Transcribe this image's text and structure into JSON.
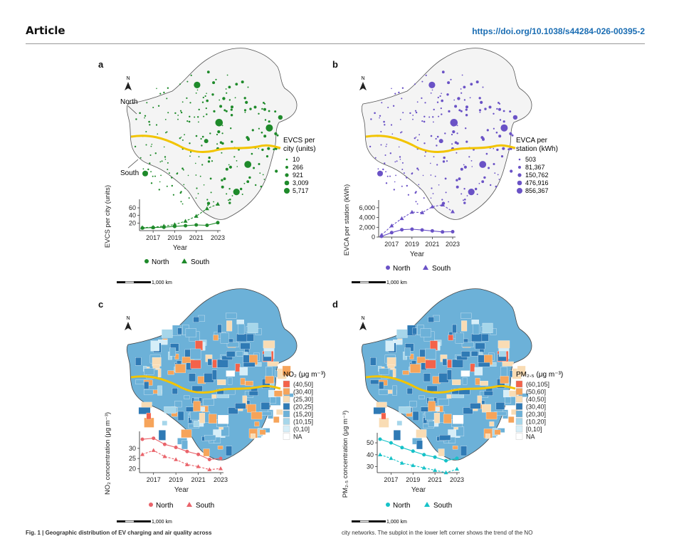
{
  "header": {
    "section": "Article",
    "doi": "https://doi.org/10.1038/s44284-026-00395-2"
  },
  "common": {
    "north_arrow": "N",
    "scale_bar": "1,000 km",
    "xaxis_label": "Year",
    "region_north": "North",
    "region_south": "South",
    "legend_north": "North",
    "legend_south": "South"
  },
  "colors": {
    "green": "#1e8a2a",
    "purple": "#6a52c6",
    "red": "#e9636a",
    "teal": "#16c2c8",
    "divider": "#f2c400"
  },
  "panels": {
    "a": {
      "letter": "a",
      "legend_title_1": "EVCS per",
      "legend_title_2": "city (units)",
      "legend_items": [
        "10",
        "266",
        "921",
        "3,009",
        "5,717"
      ]
    },
    "b": {
      "letter": "b",
      "legend_title_1": "EVCA per",
      "legend_title_2": "station (kWh)",
      "legend_items": [
        "503",
        "81,367",
        "150,762",
        "476,916",
        "856,367"
      ]
    },
    "c": {
      "letter": "c",
      "legend_title": "NO₂ (μg m⁻³)",
      "legend_items": [
        "(40,50]",
        "(30,40]",
        "(25,30]",
        "(20,25]",
        "(15,20]",
        "(10,15]",
        "(0,10]",
        "NA"
      ],
      "legend_colors": [
        "#f4624a",
        "#f6a45a",
        "#f9dcb4",
        "#2f7ab5",
        "#6cb1d8",
        "#a6d6ea",
        "#d6eef8",
        "#ffffff"
      ]
    },
    "d": {
      "letter": "d",
      "legend_title": "PM₂.₅ (μg m⁻³)",
      "legend_items": [
        "(60,105]",
        "(50,60]",
        "(40,50]",
        "(30,40]",
        "(20,30]",
        "(10,20]",
        "[0,10]",
        "NA"
      ],
      "legend_colors": [
        "#f4624a",
        "#f6a45a",
        "#f9dcb4",
        "#2f7ab5",
        "#6cb1d8",
        "#a6d6ea",
        "#d6eef8",
        "#ffffff"
      ]
    }
  },
  "chart_data": [
    {
      "type": "line",
      "panel": "a",
      "ylabel": "EVCS per city (units)",
      "x": [
        2016,
        2017,
        2018,
        2019,
        2020,
        2021,
        2022,
        2023
      ],
      "xticks": [
        "2017",
        "2019",
        "2021",
        "2023"
      ],
      "yticks": [
        "20",
        "40",
        "60"
      ],
      "ylim": [
        0,
        75
      ],
      "series": [
        {
          "name": "North",
          "marker": "circle",
          "values": [
            7,
            8,
            9,
            11,
            13,
            15,
            14,
            21
          ]
        },
        {
          "name": "South",
          "marker": "triangle",
          "values": [
            8,
            9,
            12,
            16,
            25,
            38,
            58,
            70
          ]
        }
      ]
    },
    {
      "type": "line",
      "panel": "b",
      "ylabel": "EVCA per station (kWh)",
      "x": [
        2016,
        2017,
        2018,
        2019,
        2020,
        2021,
        2022,
        2023
      ],
      "xticks": [
        "2017",
        "2019",
        "2021",
        "2023"
      ],
      "yticks": [
        "0",
        "2,000",
        "4,000",
        "6,000"
      ],
      "ylim": [
        0,
        7000
      ],
      "series": [
        {
          "name": "North",
          "marker": "circle",
          "values": [
            150,
            900,
            1500,
            1600,
            1450,
            1250,
            1050,
            1100
          ]
        },
        {
          "name": "South",
          "marker": "triangle",
          "values": [
            400,
            2300,
            3800,
            5100,
            5000,
            6200,
            6600,
            5200
          ]
        }
      ]
    },
    {
      "type": "line",
      "panel": "c",
      "ylabel": "NO₂ concentration (μg m⁻³)",
      "x": [
        2016,
        2017,
        2018,
        2019,
        2020,
        2021,
        2022,
        2023
      ],
      "xticks": [
        "2017",
        "2019",
        "2021",
        "2023"
      ],
      "yticks": [
        "20",
        "25",
        "30"
      ],
      "ylim": [
        18,
        37
      ],
      "series": [
        {
          "name": "North",
          "marker": "circle",
          "values": [
            34.5,
            35,
            32,
            30.5,
            28.5,
            27,
            24.5,
            25
          ]
        },
        {
          "name": "South",
          "marker": "triangle",
          "values": [
            27,
            29,
            26,
            24.5,
            22,
            21,
            19.5,
            20
          ]
        }
      ]
    },
    {
      "type": "line",
      "panel": "d",
      "ylabel": "PM₂.₅ concentration (μg m⁻³)",
      "x": [
        2016,
        2017,
        2018,
        2019,
        2020,
        2021,
        2022,
        2023
      ],
      "xticks": [
        "2017",
        "2019",
        "2021",
        "2023"
      ],
      "yticks": [
        "30",
        "40",
        "50"
      ],
      "ylim": [
        25,
        56
      ],
      "series": [
        {
          "name": "North",
          "marker": "circle",
          "values": [
            53,
            50,
            46,
            43,
            40,
            38,
            35,
            37
          ]
        },
        {
          "name": "South",
          "marker": "triangle",
          "values": [
            40,
            37,
            33,
            31,
            29,
            27,
            25,
            28
          ]
        }
      ]
    }
  ],
  "caption": {
    "left": "Fig. 1 | Geographic distribution of EV charging and air quality across",
    "right": "city networks. The subplot in the lower left corner shows the trend of the NO"
  }
}
